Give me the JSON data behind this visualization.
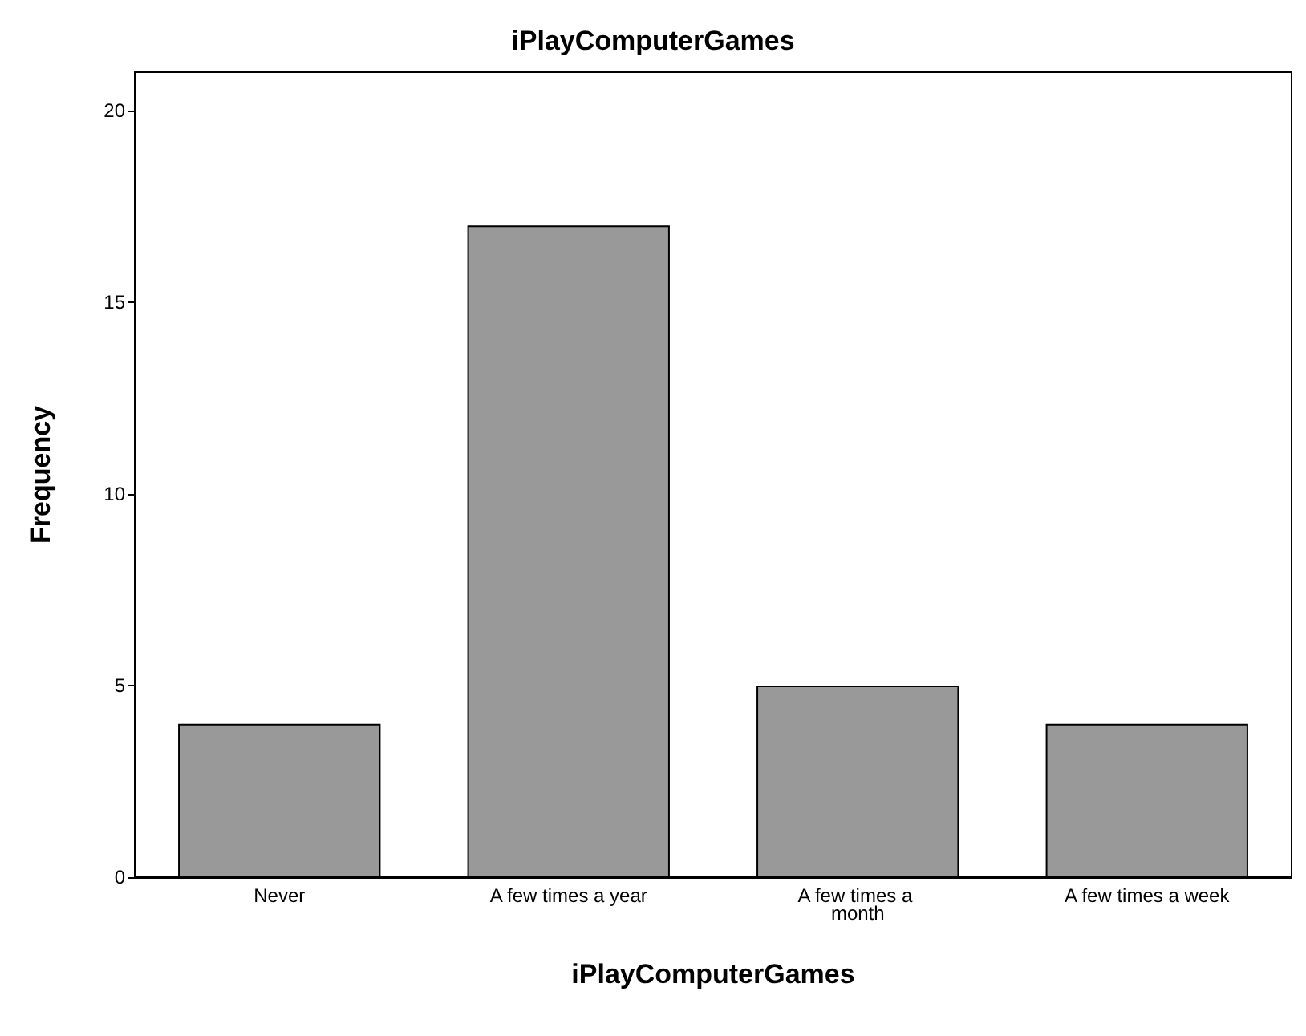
{
  "chart_data": {
    "type": "bar",
    "title": "iPlayComputerGames",
    "xlabel": "iPlayComputerGames",
    "ylabel": "Frequency",
    "categories": [
      "Never",
      "A few times a year",
      "A few times a month",
      "A few times a week"
    ],
    "values": [
      4,
      17,
      5,
      4
    ],
    "color": "#999999",
    "ylim": [
      0,
      21
    ],
    "yticks": [
      0,
      5,
      10,
      15,
      20
    ],
    "grid": false
  }
}
